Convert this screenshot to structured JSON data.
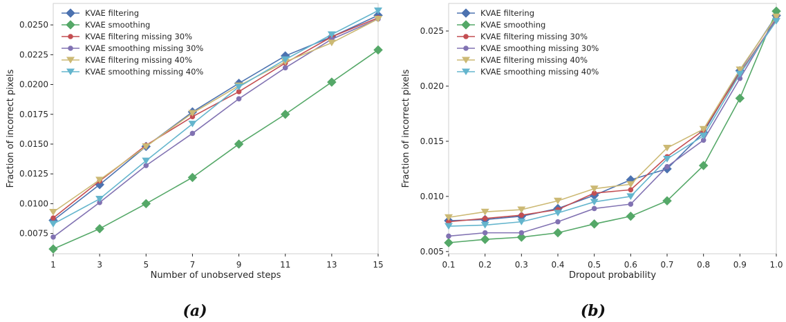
{
  "chart_data": [
    {
      "type": "line",
      "caption": "(a)",
      "xlabel": "Number of unobserved steps",
      "ylabel": "Fraction of incorrect pixels",
      "xlim": [
        1,
        15
      ],
      "ylim": [
        0.0058,
        0.0268
      ],
      "xticks": [
        1,
        3,
        5,
        7,
        9,
        11,
        13,
        15
      ],
      "yticks": [
        0.0075,
        0.01,
        0.0125,
        0.015,
        0.0175,
        0.02,
        0.0225,
        0.025
      ],
      "ytick_labels": [
        "0.0075",
        "0.0100",
        "0.0125",
        "0.0150",
        "0.0175",
        "0.0200",
        "0.0225",
        "0.0250"
      ],
      "grid": false,
      "legend": "top-left",
      "x": [
        1,
        3,
        5,
        7,
        9,
        11,
        13,
        15
      ],
      "series": [
        {
          "name": "KVAE filtering",
          "color": "#4c72b0",
          "marker": "diamond",
          "values": [
            0.0086,
            0.0116,
            0.0148,
            0.0177,
            0.0201,
            0.0224,
            0.024,
            0.0258
          ]
        },
        {
          "name": "KVAE smoothing",
          "color": "#55a868",
          "marker": "diamond",
          "values": [
            0.0062,
            0.0079,
            0.01,
            0.0122,
            0.015,
            0.0175,
            0.0202,
            0.0229
          ]
        },
        {
          "name": "KVAE filtering missing 30%",
          "color": "#c44e52",
          "marker": "circle",
          "values": [
            0.0088,
            0.0119,
            0.0149,
            0.0173,
            0.0194,
            0.0218,
            0.024,
            0.0256
          ]
        },
        {
          "name": "KVAE smoothing missing 30%",
          "color": "#8172b2",
          "marker": "circle",
          "values": [
            0.0072,
            0.0101,
            0.0132,
            0.0159,
            0.0188,
            0.0214,
            0.0238,
            0.0255
          ]
        },
        {
          "name": "KVAE filtering missing 40%",
          "color": "#ccb974",
          "marker": "triangle-down",
          "values": [
            0.0093,
            0.012,
            0.0148,
            0.0176,
            0.0199,
            0.0219,
            0.0235,
            0.0255
          ]
        },
        {
          "name": "KVAE smoothing missing 40%",
          "color": "#64b5cd",
          "marker": "triangle-down",
          "values": [
            0.0083,
            0.0104,
            0.0136,
            0.0167,
            0.0198,
            0.0221,
            0.0242,
            0.0262
          ]
        }
      ]
    },
    {
      "type": "line",
      "caption": "(b)",
      "xlabel": "Dropout probability",
      "ylabel": "Fraction of incorrect pixels",
      "xlim": [
        0.1,
        1.0
      ],
      "ylim": [
        0.0048,
        0.0275
      ],
      "xticks": [
        0.1,
        0.2,
        0.3,
        0.4,
        0.5,
        0.6,
        0.7,
        0.8,
        0.9,
        1.0
      ],
      "xtick_labels": [
        "0.1",
        "0.2",
        "0.3",
        "0.4",
        "0.5",
        "0.6",
        "0.7",
        "0.8",
        "0.9",
        "1.0"
      ],
      "yticks": [
        0.005,
        0.01,
        0.015,
        0.02,
        0.025
      ],
      "ytick_labels": [
        "0.005",
        "0.010",
        "0.015",
        "0.020",
        "0.025"
      ],
      "grid": false,
      "legend": "top-left",
      "x": [
        0.1,
        0.2,
        0.3,
        0.4,
        0.5,
        0.6,
        0.7,
        0.8,
        0.9,
        1.0
      ],
      "series": [
        {
          "name": "KVAE filtering",
          "color": "#4c72b0",
          "marker": "diamond",
          "values": [
            0.0078,
            0.0079,
            0.0082,
            0.0089,
            0.0101,
            0.0115,
            0.0125,
            0.0158,
            0.0214,
            0.0264
          ]
        },
        {
          "name": "KVAE smoothing",
          "color": "#55a868",
          "marker": "diamond",
          "values": [
            0.0058,
            0.0061,
            0.0063,
            0.0067,
            0.0075,
            0.0082,
            0.0096,
            0.0128,
            0.0189,
            0.0268
          ]
        },
        {
          "name": "KVAE filtering missing 30%",
          "color": "#c44e52",
          "marker": "circle",
          "values": [
            0.0077,
            0.008,
            0.0083,
            0.0088,
            0.0103,
            0.0106,
            0.0136,
            0.016,
            0.0212,
            0.026
          ]
        },
        {
          "name": "KVAE smoothing missing 30%",
          "color": "#8172b2",
          "marker": "circle",
          "values": [
            0.0064,
            0.0067,
            0.0067,
            0.0077,
            0.0089,
            0.0093,
            0.0127,
            0.0151,
            0.0207,
            0.0262
          ]
        },
        {
          "name": "KVAE filtering missing 40%",
          "color": "#ccb974",
          "marker": "triangle-down",
          "values": [
            0.0081,
            0.0086,
            0.0088,
            0.0096,
            0.0107,
            0.0111,
            0.0144,
            0.0161,
            0.0215,
            0.0263
          ]
        },
        {
          "name": "KVAE smoothing missing 40%",
          "color": "#64b5cd",
          "marker": "triangle-down",
          "values": [
            0.0073,
            0.0074,
            0.0077,
            0.0085,
            0.0095,
            0.01,
            0.0134,
            0.0155,
            0.0211,
            0.0259
          ]
        }
      ]
    }
  ]
}
